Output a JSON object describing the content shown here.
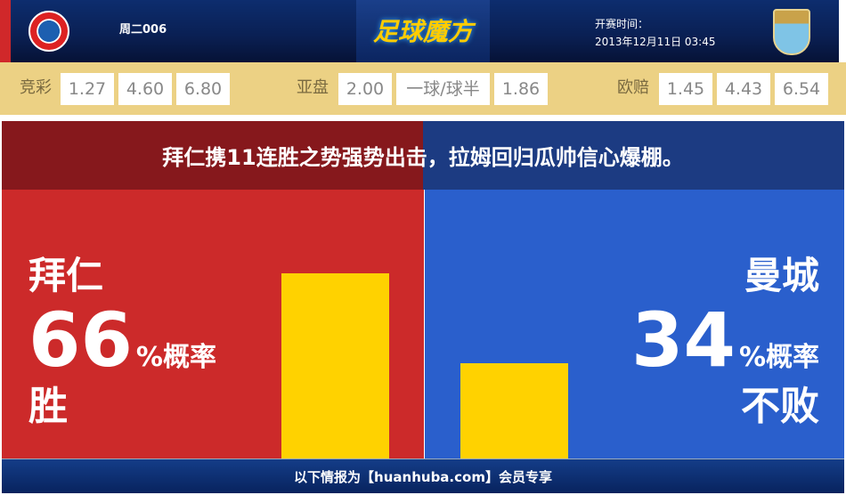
{
  "header": {
    "match_no": "周二006",
    "logo_text": "足球魔方",
    "kickoff_label": "开赛时间：",
    "kickoff_time": "2013年12月11日 03:45",
    "home_crest": "FC Bayern München",
    "away_crest": "Manchester City"
  },
  "odds": {
    "jingcai": {
      "label": "竞彩",
      "values": [
        "1.27",
        "4.60",
        "6.80"
      ]
    },
    "yapan": {
      "label": "亚盘",
      "values": [
        "2.00",
        "一球/球半",
        "1.86"
      ]
    },
    "oupei": {
      "label": "欧赔",
      "values": [
        "1.45",
        "4.43",
        "6.54"
      ]
    }
  },
  "headline": "拜仁携11连胜之势强势出击，拉姆回归瓜帅信心爆棚。",
  "home": {
    "team": "拜仁",
    "percent": "66",
    "percent_suffix": "%概率",
    "outcome": "胜",
    "probability": 66
  },
  "away": {
    "team": "曼城",
    "percent": "34",
    "percent_suffix": "%概率",
    "outcome": "不败",
    "probability": 34
  },
  "colors": {
    "home": "#cc2a2a",
    "away": "#2a5fcc",
    "bar": "#ffd200",
    "odds_bg": "#ecd184"
  },
  "footer": "以下情报为【huanhuba.com】会员专享"
}
